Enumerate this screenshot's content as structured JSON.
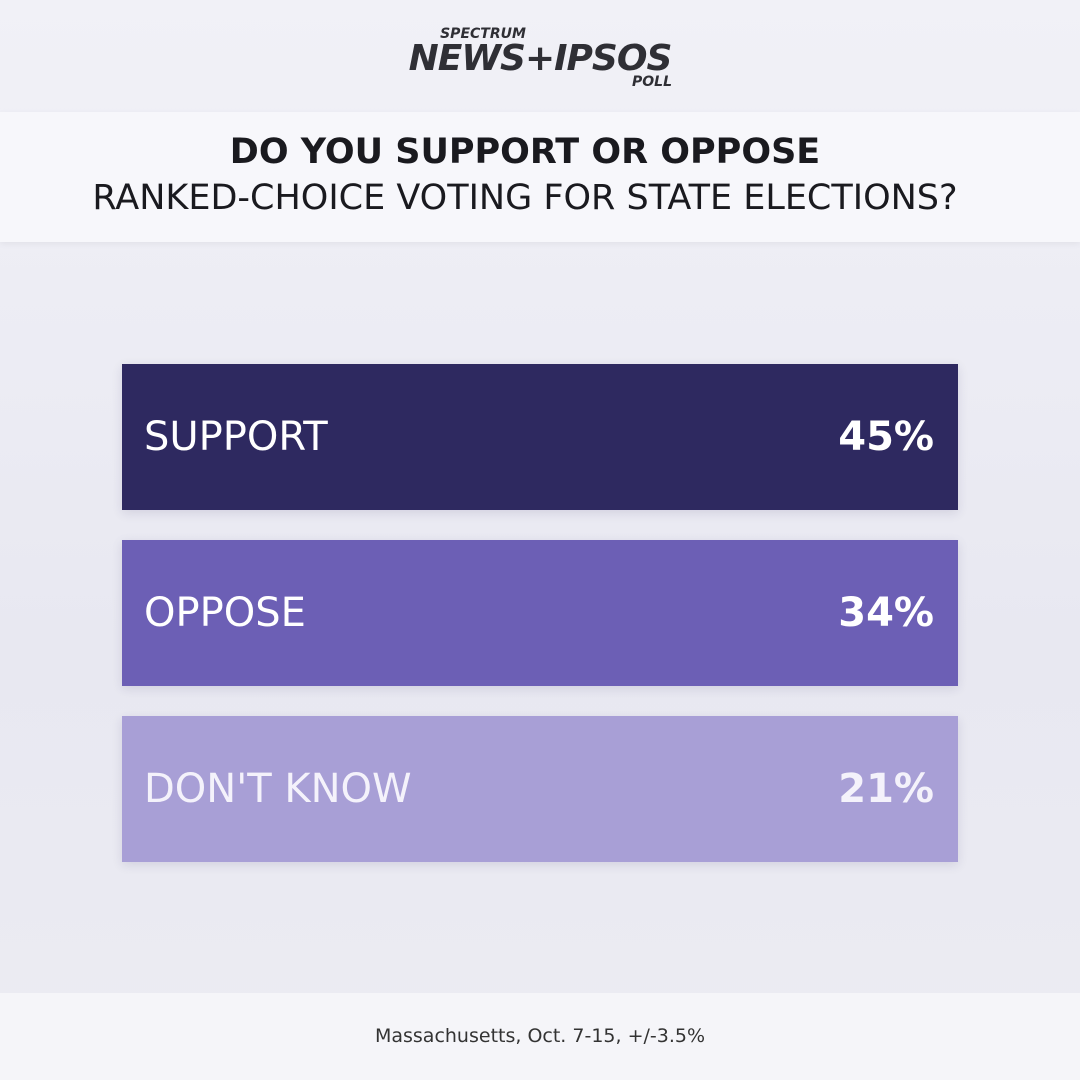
{
  "logo": {
    "top": "SPECTRUM",
    "main": "NEWS+IPSOS",
    "bottom": "POLL"
  },
  "question": {
    "line1": "DO YOU SUPPORT OR OPPOSE",
    "line2": "RANKED-CHOICE VOTING FOR STATE ELECTIONS?"
  },
  "rows": [
    {
      "label": "SUPPORT",
      "value": "45%",
      "color": "#2e2960",
      "text_color": "#ffffff"
    },
    {
      "label": "OPPOSE",
      "value": "34%",
      "color": "#6c5fb5",
      "text_color": "#ffffff"
    },
    {
      "label": "DON'T KNOW",
      "value": "21%",
      "color": "#a89fd6",
      "text_color": "#f4f2fb"
    }
  ],
  "footer": "Massachusetts, Oct. 7-15, +/-3.5%"
}
